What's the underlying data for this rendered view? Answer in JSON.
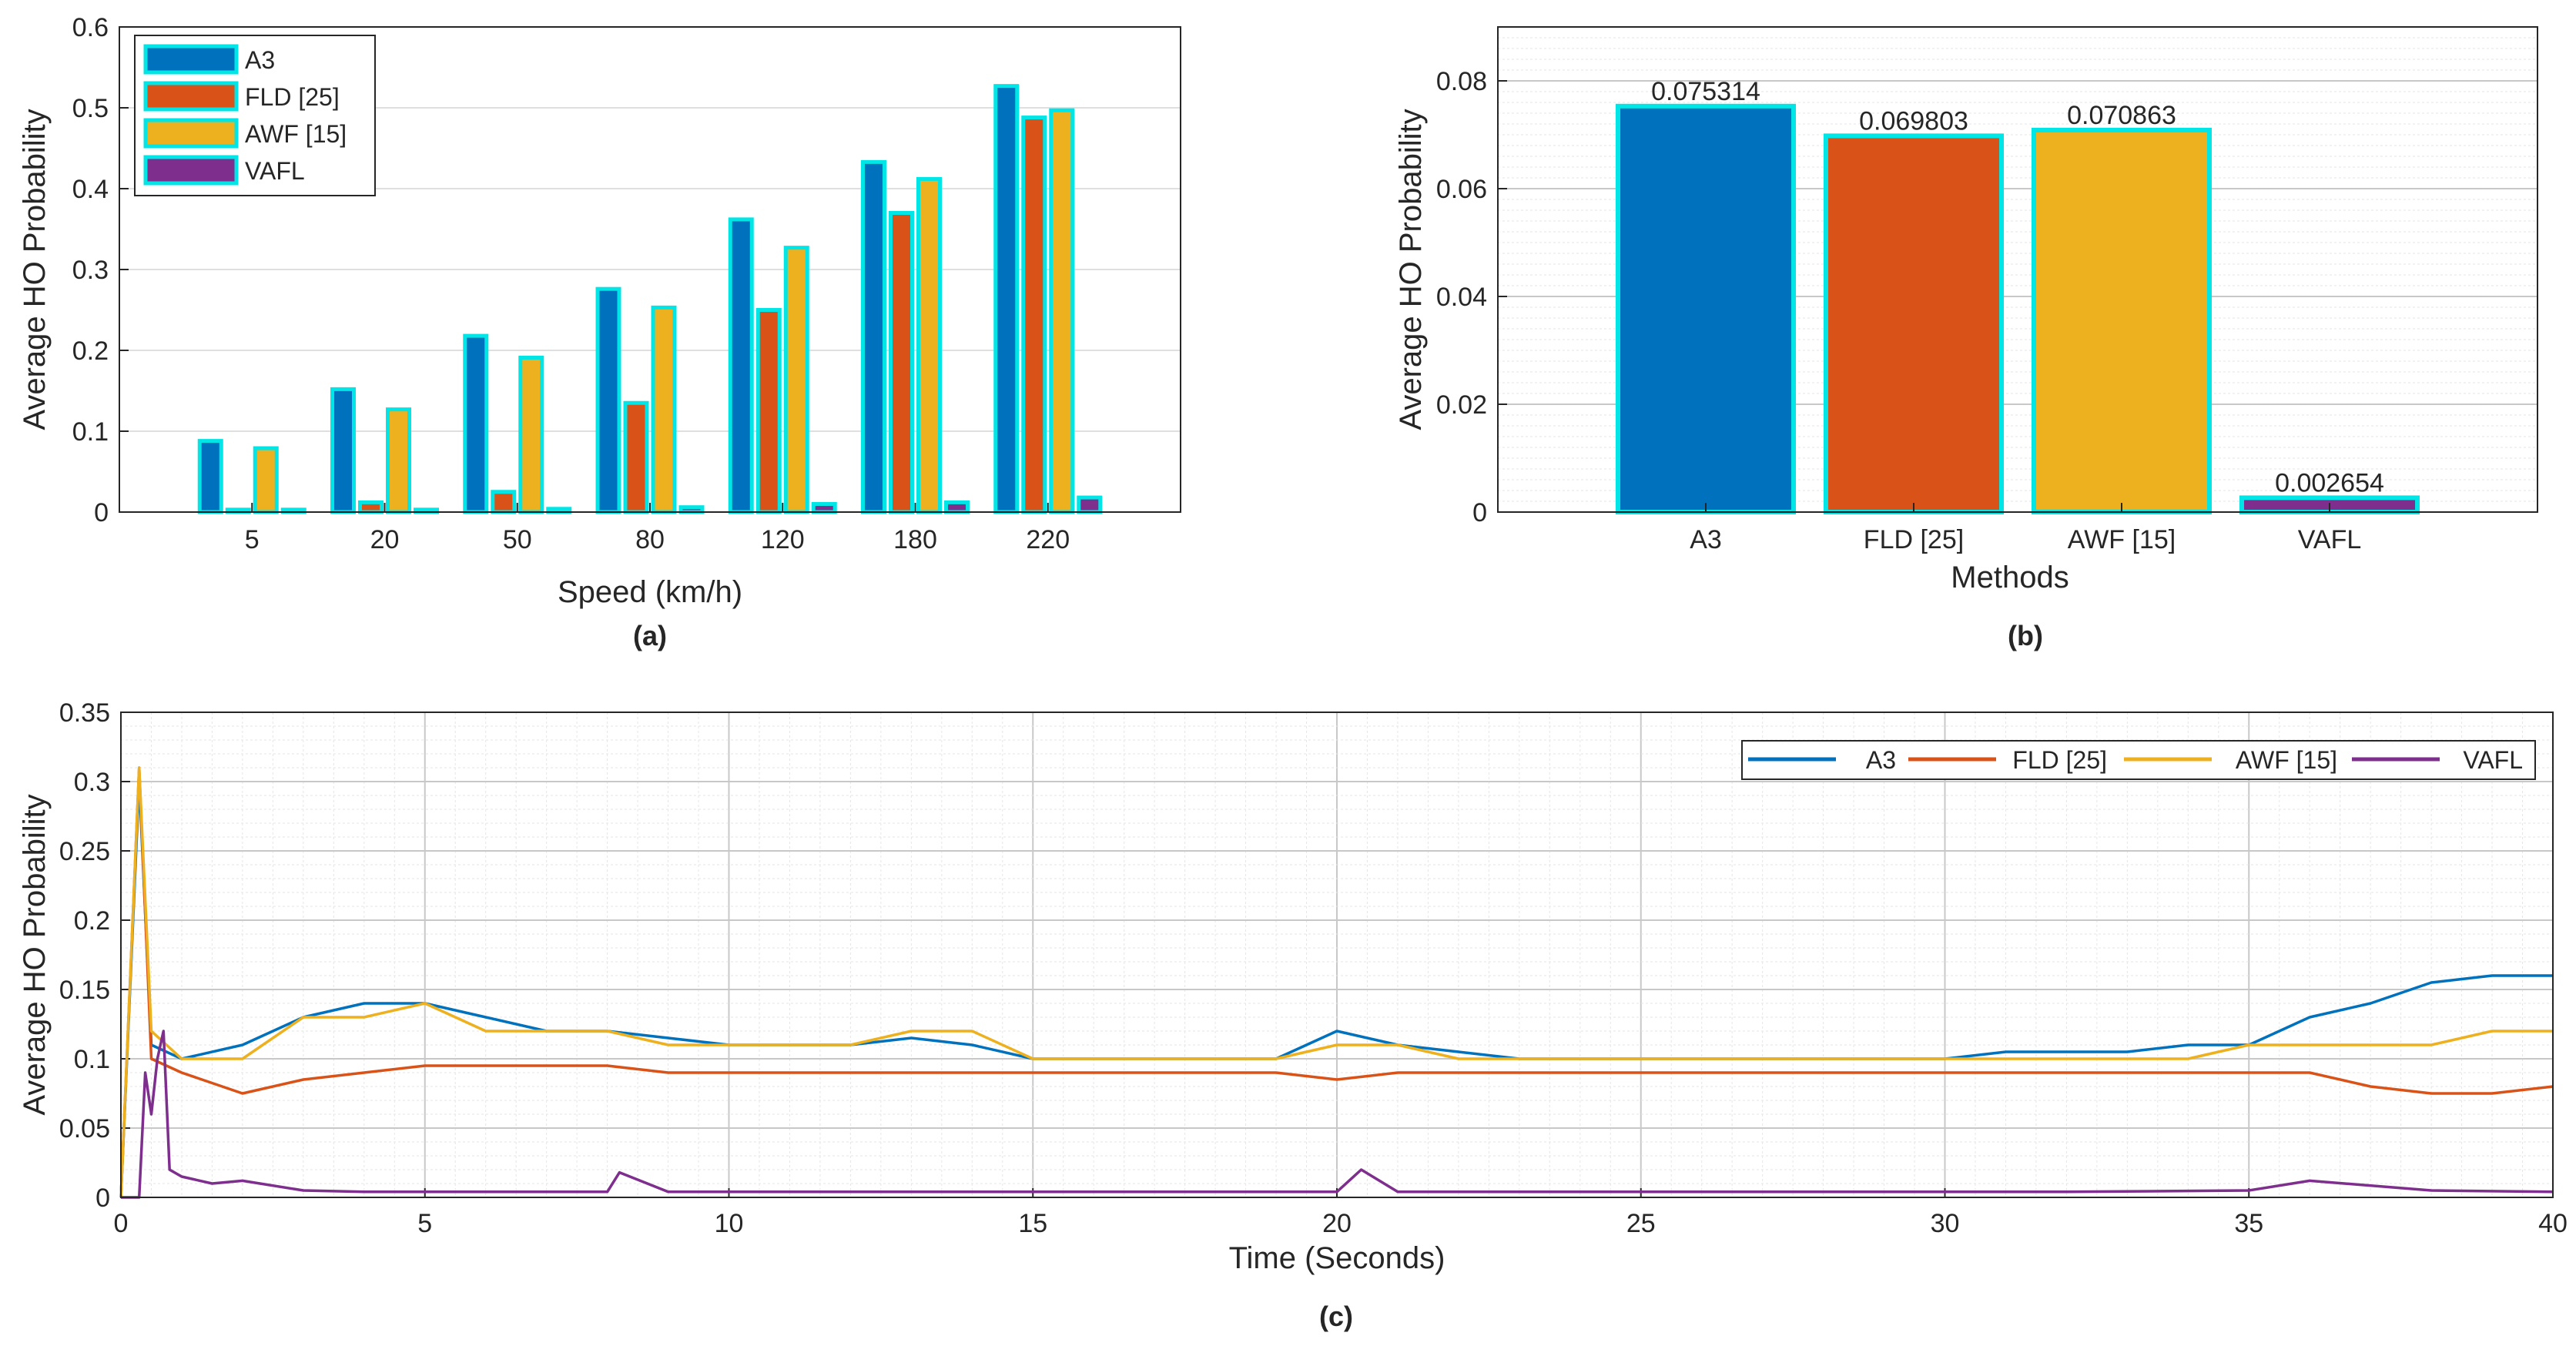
{
  "colors": {
    "a3": "#0072BD",
    "fld": "#D95319",
    "awf": "#EDB120",
    "vafl": "#7E2F8E",
    "edge": "#00E5E5"
  },
  "chart_data": [
    {
      "type": "bar",
      "caption": "(a)",
      "xlabel": "Speed (km/h)",
      "ylabel": "Average HO Probability",
      "categories": [
        "5",
        "20",
        "50",
        "80",
        "120",
        "180",
        "220"
      ],
      "ylim": [
        0,
        0.6
      ],
      "yticks": [
        "0",
        "0.1",
        "0.2",
        "0.3",
        "0.4",
        "0.5",
        "0.6"
      ],
      "legend_position": "top-left",
      "series": [
        {
          "name": "A3",
          "values": [
            0.088,
            0.152,
            0.218,
            0.276,
            0.362,
            0.433,
            0.527
          ]
        },
        {
          "name": "FLD [25]",
          "values": [
            0.003,
            0.012,
            0.025,
            0.135,
            0.25,
            0.37,
            0.488
          ]
        },
        {
          "name": "AWF [15]",
          "values": [
            0.079,
            0.127,
            0.191,
            0.253,
            0.327,
            0.412,
            0.497
          ]
        },
        {
          "name": "VAFL",
          "values": [
            0.003,
            0.003,
            0.004,
            0.006,
            0.01,
            0.012,
            0.018
          ]
        }
      ]
    },
    {
      "type": "bar",
      "caption": "(b)",
      "xlabel": "Methods",
      "ylabel": "Average HO Probability",
      "categories": [
        "A3",
        "FLD [25]",
        "AWF [15]",
        "VAFL"
      ],
      "values": [
        0.075314,
        0.069803,
        0.070863,
        0.002654
      ],
      "data_labels": [
        "0.075314",
        "0.069803",
        "0.070863",
        "0.002654"
      ],
      "ylim": [
        0,
        0.09
      ],
      "yticks": [
        "0",
        "0.02",
        "0.04",
        "0.06",
        "0.08"
      ]
    },
    {
      "type": "line",
      "caption": "(c)",
      "xlabel": "Time (Seconds)",
      "ylabel": "Average HO Probability",
      "xlim": [
        0,
        40
      ],
      "ylim": [
        0,
        0.35
      ],
      "xticks": [
        "0",
        "5",
        "10",
        "15",
        "20",
        "25",
        "30",
        "35",
        "40"
      ],
      "yticks": [
        "0",
        "0.05",
        "0.1",
        "0.15",
        "0.2",
        "0.25",
        "0.3",
        "0.35"
      ],
      "legend_position": "top-right",
      "series": [
        {
          "name": "A3",
          "x": [
            0,
            0.3,
            0.5,
            1,
            2,
            3,
            4,
            5,
            6,
            7,
            8,
            9,
            10,
            11,
            12,
            13,
            14,
            15,
            16,
            17,
            18,
            19,
            20,
            21,
            22,
            23,
            24,
            25,
            26,
            27,
            28,
            29,
            30,
            31,
            32,
            33,
            34,
            35,
            36,
            37,
            38,
            39,
            40
          ],
          "y": [
            0,
            0.3,
            0.11,
            0.1,
            0.11,
            0.13,
            0.14,
            0.14,
            0.13,
            0.12,
            0.12,
            0.115,
            0.11,
            0.11,
            0.11,
            0.115,
            0.11,
            0.1,
            0.1,
            0.1,
            0.1,
            0.1,
            0.12,
            0.11,
            0.105,
            0.1,
            0.1,
            0.1,
            0.1,
            0.1,
            0.1,
            0.1,
            0.1,
            0.105,
            0.105,
            0.105,
            0.11,
            0.11,
            0.13,
            0.14,
            0.155,
            0.16,
            0.16
          ]
        },
        {
          "name": "FLD [25]",
          "x": [
            0,
            0.3,
            0.5,
            1,
            2,
            3,
            4,
            5,
            6,
            7,
            8,
            9,
            10,
            11,
            12,
            13,
            14,
            15,
            16,
            17,
            18,
            19,
            20,
            21,
            22,
            23,
            24,
            25,
            26,
            27,
            28,
            29,
            30,
            31,
            32,
            33,
            34,
            35,
            36,
            37,
            38,
            39,
            40
          ],
          "y": [
            0,
            0.31,
            0.1,
            0.09,
            0.075,
            0.085,
            0.09,
            0.095,
            0.095,
            0.095,
            0.095,
            0.09,
            0.09,
            0.09,
            0.09,
            0.09,
            0.09,
            0.09,
            0.09,
            0.09,
            0.09,
            0.09,
            0.085,
            0.09,
            0.09,
            0.09,
            0.09,
            0.09,
            0.09,
            0.09,
            0.09,
            0.09,
            0.09,
            0.09,
            0.09,
            0.09,
            0.09,
            0.09,
            0.09,
            0.08,
            0.075,
            0.075,
            0.08
          ]
        },
        {
          "name": "AWF [15]",
          "x": [
            0,
            0.3,
            0.5,
            1,
            2,
            3,
            4,
            5,
            6,
            7,
            8,
            9,
            10,
            11,
            12,
            13,
            14,
            15,
            16,
            17,
            18,
            19,
            20,
            21,
            22,
            23,
            24,
            25,
            26,
            27,
            28,
            29,
            30,
            31,
            32,
            33,
            34,
            35,
            36,
            37,
            38,
            39,
            40
          ],
          "y": [
            0,
            0.31,
            0.12,
            0.1,
            0.1,
            0.13,
            0.13,
            0.14,
            0.12,
            0.12,
            0.12,
            0.11,
            0.11,
            0.11,
            0.11,
            0.12,
            0.12,
            0.1,
            0.1,
            0.1,
            0.1,
            0.1,
            0.11,
            0.11,
            0.1,
            0.1,
            0.1,
            0.1,
            0.1,
            0.1,
            0.1,
            0.1,
            0.1,
            0.1,
            0.1,
            0.1,
            0.1,
            0.11,
            0.11,
            0.11,
            0.11,
            0.12,
            0.12
          ]
        },
        {
          "name": "VAFL",
          "x": [
            0,
            0.3,
            0.4,
            0.5,
            0.6,
            0.7,
            0.8,
            1,
            1.5,
            2,
            3,
            4,
            5,
            6,
            7,
            8,
            8.2,
            9,
            10,
            12,
            14,
            16,
            18,
            20,
            20.4,
            21,
            24,
            28,
            32,
            35,
            36,
            38,
            40
          ],
          "y": [
            0,
            0,
            0.09,
            0.06,
            0.1,
            0.12,
            0.02,
            0.015,
            0.01,
            0.012,
            0.005,
            0.004,
            0.004,
            0.004,
            0.004,
            0.004,
            0.018,
            0.004,
            0.004,
            0.004,
            0.004,
            0.004,
            0.004,
            0.004,
            0.02,
            0.004,
            0.004,
            0.004,
            0.004,
            0.005,
            0.012,
            0.005,
            0.004
          ]
        }
      ]
    }
  ]
}
